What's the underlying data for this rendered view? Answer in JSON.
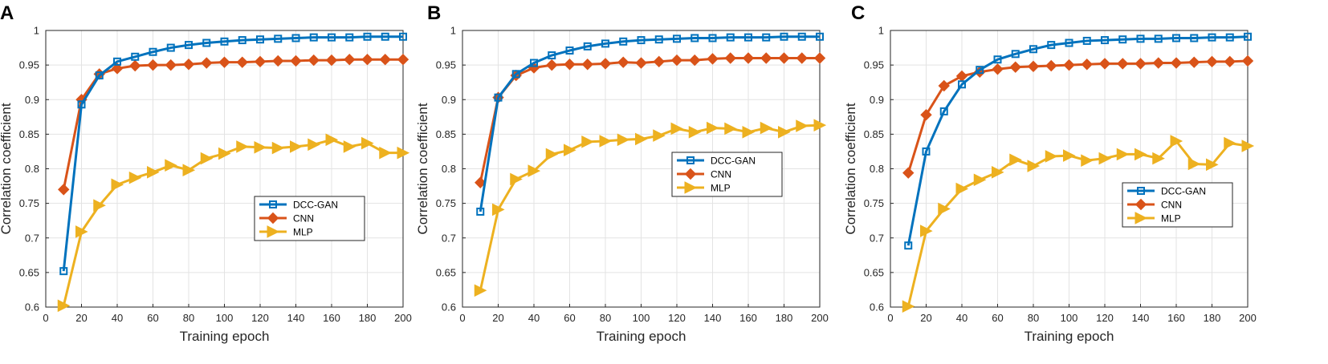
{
  "chart_data": [
    {
      "type": "line",
      "panel_label": "A",
      "xlabel": "Training epoch",
      "ylabel": "Correlation coefficient",
      "xlim": [
        0,
        200
      ],
      "ylim": [
        0.6,
        1
      ],
      "xticks": [
        0,
        20,
        40,
        60,
        80,
        100,
        120,
        140,
        160,
        180,
        200
      ],
      "yticks": [
        0.6,
        0.65,
        0.7,
        0.75,
        0.8,
        0.85,
        0.9,
        0.95,
        1
      ],
      "ytick_labels": [
        "0.6",
        "0.65",
        "0.7",
        "0.75",
        "0.8",
        "0.85",
        "0.9",
        "0.95",
        "1"
      ],
      "grid": true,
      "legend_position": "center-right",
      "x": [
        10,
        20,
        30,
        40,
        50,
        60,
        70,
        80,
        90,
        100,
        110,
        120,
        130,
        140,
        150,
        160,
        170,
        180,
        190,
        200
      ],
      "series": [
        {
          "name": "DCC-GAN",
          "color": "#0072BD",
          "marker": "square",
          "values": [
            0.652,
            0.893,
            0.935,
            0.955,
            0.962,
            0.969,
            0.975,
            0.979,
            0.982,
            0.984,
            0.986,
            0.987,
            0.988,
            0.989,
            0.99,
            0.99,
            0.99,
            0.991,
            0.991,
            0.991
          ]
        },
        {
          "name": "CNN",
          "color": "#D95319",
          "marker": "diamond",
          "values": [
            0.77,
            0.9,
            0.937,
            0.945,
            0.949,
            0.95,
            0.95,
            0.951,
            0.953,
            0.954,
            0.954,
            0.955,
            0.956,
            0.956,
            0.957,
            0.957,
            0.958,
            0.958,
            0.958,
            0.958
          ]
        },
        {
          "name": "MLP",
          "color": "#EDB120",
          "marker": "triangle-right",
          "values": [
            0.602,
            0.709,
            0.747,
            0.777,
            0.787,
            0.795,
            0.805,
            0.798,
            0.815,
            0.822,
            0.832,
            0.831,
            0.83,
            0.832,
            0.835,
            0.842,
            0.832,
            0.837,
            0.823,
            0.823
          ]
        }
      ]
    },
    {
      "type": "line",
      "panel_label": "B",
      "xlabel": "Training epoch",
      "ylabel": "Correlation coefficient",
      "xlim": [
        0,
        200
      ],
      "ylim": [
        0.6,
        1
      ],
      "xticks": [
        0,
        20,
        40,
        60,
        80,
        100,
        120,
        140,
        160,
        180,
        200
      ],
      "yticks": [
        0.6,
        0.65,
        0.7,
        0.75,
        0.8,
        0.85,
        0.9,
        0.95,
        1
      ],
      "ytick_labels": [
        "0.6",
        "0.65",
        "0.7",
        "0.75",
        "0.8",
        "0.85",
        "0.9",
        "0.95",
        "1"
      ],
      "grid": true,
      "legend_position": "center-right",
      "x": [
        10,
        20,
        30,
        40,
        50,
        60,
        70,
        80,
        90,
        100,
        110,
        120,
        130,
        140,
        150,
        160,
        170,
        180,
        190,
        200
      ],
      "series": [
        {
          "name": "DCC-GAN",
          "color": "#0072BD",
          "marker": "square",
          "values": [
            0.738,
            0.903,
            0.937,
            0.953,
            0.964,
            0.971,
            0.977,
            0.981,
            0.984,
            0.986,
            0.987,
            0.988,
            0.989,
            0.989,
            0.99,
            0.99,
            0.99,
            0.991,
            0.991,
            0.991
          ]
        },
        {
          "name": "CNN",
          "color": "#D95319",
          "marker": "diamond",
          "values": [
            0.78,
            0.903,
            0.935,
            0.946,
            0.95,
            0.951,
            0.951,
            0.952,
            0.954,
            0.953,
            0.955,
            0.957,
            0.957,
            0.959,
            0.96,
            0.96,
            0.96,
            0.96,
            0.96,
            0.96
          ]
        },
        {
          "name": "MLP",
          "color": "#EDB120",
          "marker": "triangle-right",
          "values": [
            0.624,
            0.741,
            0.785,
            0.797,
            0.821,
            0.827,
            0.839,
            0.84,
            0.842,
            0.843,
            0.848,
            0.858,
            0.853,
            0.859,
            0.858,
            0.853,
            0.859,
            0.853,
            0.862,
            0.863
          ]
        }
      ]
    },
    {
      "type": "line",
      "panel_label": "C",
      "xlabel": "Training epoch",
      "ylabel": "Correlation coefficient",
      "xlim": [
        0,
        200
      ],
      "ylim": [
        0.6,
        1
      ],
      "xticks": [
        0,
        20,
        40,
        60,
        80,
        100,
        120,
        140,
        160,
        180,
        200
      ],
      "yticks": [
        0.6,
        0.65,
        0.7,
        0.75,
        0.8,
        0.85,
        0.9,
        0.95,
        1
      ],
      "ytick_labels": [
        "0.6",
        "0.65",
        "0.7",
        "0.75",
        "0.8",
        "0.85",
        "0.9",
        "0.95",
        "1"
      ],
      "grid": true,
      "legend_position": "lower-right",
      "x": [
        10,
        20,
        30,
        40,
        50,
        60,
        70,
        80,
        90,
        100,
        110,
        120,
        130,
        140,
        150,
        160,
        170,
        180,
        190,
        200
      ],
      "series": [
        {
          "name": "DCC-GAN",
          "color": "#0072BD",
          "marker": "square",
          "values": [
            0.689,
            0.825,
            0.883,
            0.922,
            0.943,
            0.958,
            0.966,
            0.973,
            0.979,
            0.982,
            0.985,
            0.986,
            0.987,
            0.988,
            0.988,
            0.989,
            0.989,
            0.99,
            0.99,
            0.991
          ]
        },
        {
          "name": "CNN",
          "color": "#D95319",
          "marker": "diamond",
          "values": [
            0.794,
            0.878,
            0.92,
            0.934,
            0.94,
            0.944,
            0.947,
            0.948,
            0.949,
            0.95,
            0.951,
            0.952,
            0.952,
            0.952,
            0.953,
            0.953,
            0.954,
            0.955,
            0.955,
            0.956
          ]
        },
        {
          "name": "MLP",
          "color": "#EDB120",
          "marker": "triangle-right",
          "values": [
            0.601,
            0.71,
            0.742,
            0.771,
            0.784,
            0.795,
            0.813,
            0.804,
            0.818,
            0.819,
            0.812,
            0.815,
            0.821,
            0.821,
            0.815,
            0.84,
            0.807,
            0.806,
            0.837,
            0.833
          ]
        }
      ]
    }
  ]
}
